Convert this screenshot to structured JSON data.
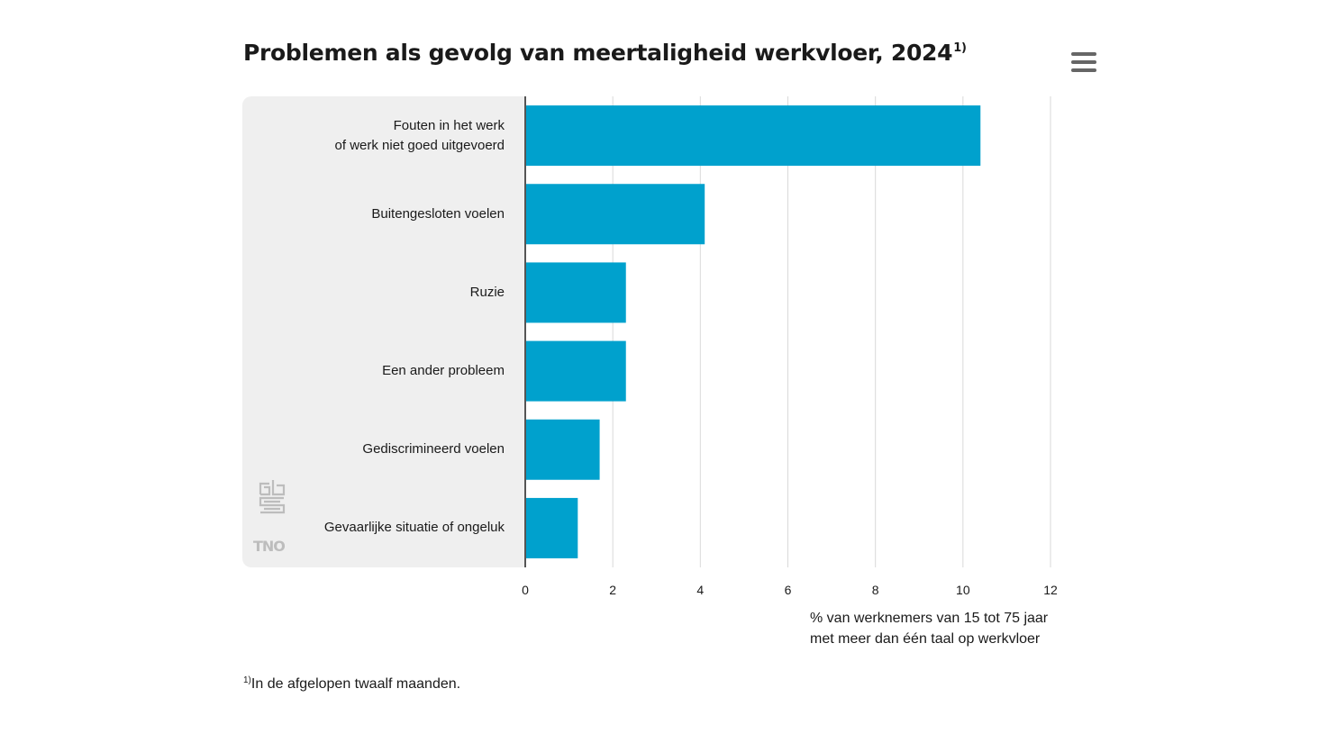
{
  "title": "Problemen als gevolg van meertaligheid werkvloer, 2024",
  "title_footnote_marker": "1)",
  "menu_icon": "hamburger-menu-icon",
  "colors": {
    "bar": "#00a1cd",
    "label_background": "#efefef",
    "gridline": "#d9d9d9",
    "axis": "#555555"
  },
  "chart_data": {
    "type": "bar",
    "orientation": "horizontal",
    "categories": [
      "Fouten in het werk\nof werk niet goed uitgevoerd",
      "Buitengesloten voelen",
      "Ruzie",
      "Een ander probleem",
      "Gediscrimineerd voelen",
      "Gevaarlijke situatie of ongeluk"
    ],
    "values": [
      10.4,
      4.1,
      2.3,
      2.3,
      1.7,
      1.2
    ],
    "xlim": [
      0,
      12
    ],
    "xticks": [
      "0",
      "2",
      "4",
      "6",
      "8",
      "10",
      "12"
    ],
    "xlabel": "% van werknemers van 15 tot 75 jaar\nmet meer dan één taal op werkvloer",
    "grid": true
  },
  "footnote": {
    "marker": "1)",
    "text": "In de afgelopen twaalf maanden."
  },
  "logos": {
    "cbs": "cbs",
    "tno": "TNO"
  }
}
